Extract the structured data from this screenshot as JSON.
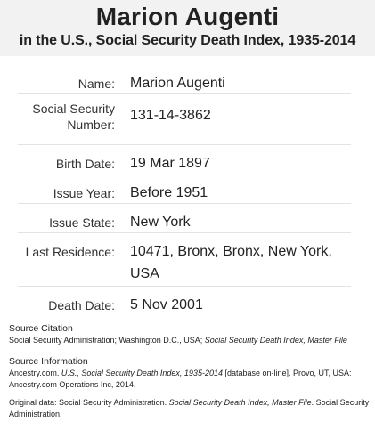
{
  "header": {
    "title": "Marion Augenti",
    "subtitle": "in the U.S., Social Security Death Index, 1935-2014"
  },
  "records": [
    {
      "label": "Name:",
      "value": "Marion Augenti"
    },
    {
      "label": "Social Security Number:",
      "value": "131-14-3862"
    },
    {
      "label": "Birth Date:",
      "value": "19 Mar 1897"
    },
    {
      "label": "Issue Year:",
      "value": "Before 1951"
    },
    {
      "label": "Issue State:",
      "value": "New York"
    },
    {
      "label": "Last Residence:",
      "value": "10471, Bronx, Bronx, New York, USA"
    },
    {
      "label": "Death Date:",
      "value": "5 Nov 2001"
    }
  ],
  "source_citation": {
    "heading": "Source Citation",
    "text_plain": "Social Security Administration; Washington D.C., USA; ",
    "text_italic": "Social Security Death Index, Master File"
  },
  "source_information": {
    "heading": "Source Information",
    "part1": "Ancestry.com. ",
    "part2_italic": "U.S., Social Security Death Index, 1935-2014",
    "part3": " [database on-line]. Provo, UT, USA: Ancestry.com Operations Inc, 2014."
  },
  "original_data": {
    "part1": "Original data: Social Security Administration. ",
    "part2_italic": "Social Security Death Index, Master File",
    "part3": ". Social Security Administration."
  }
}
